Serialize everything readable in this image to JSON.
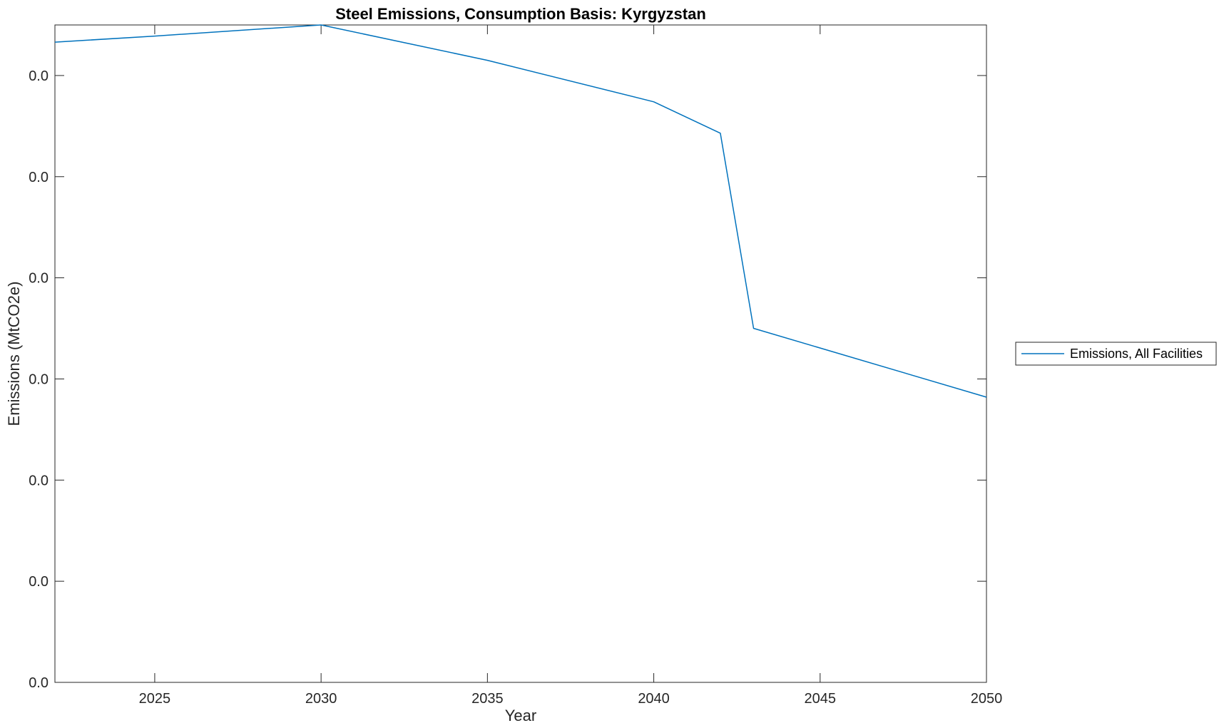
{
  "chart_data": {
    "type": "line",
    "title": "Steel Emissions, Consumption Basis: Kyrgyzstan",
    "xlabel": "Year",
    "ylabel": "Emissions (MtCO2e)",
    "xlim": [
      2022,
      2050
    ],
    "ylim": [
      0,
      0.0065
    ],
    "x_ticks": [
      2025,
      2030,
      2035,
      2040,
      2045,
      2050
    ],
    "y_ticks": [
      0,
      0.001,
      0.002,
      0.003,
      0.004,
      0.005,
      0.006
    ],
    "y_tick_labels": [
      "0.0",
      "0.0",
      "0.0",
      "0.0",
      "0.0",
      "0.0",
      "0.0"
    ],
    "grid": false,
    "legend_position": "outside-right",
    "series": [
      {
        "name": "Emissions, All Facilities",
        "color": "#0072BD",
        "x": [
          2022,
          2025,
          2030,
          2035,
          2040,
          2042,
          2043,
          2050
        ],
        "y": [
          0.00633,
          0.00639,
          0.0065,
          0.00615,
          0.00574,
          0.00543,
          0.0035,
          0.00282
        ]
      }
    ]
  }
}
